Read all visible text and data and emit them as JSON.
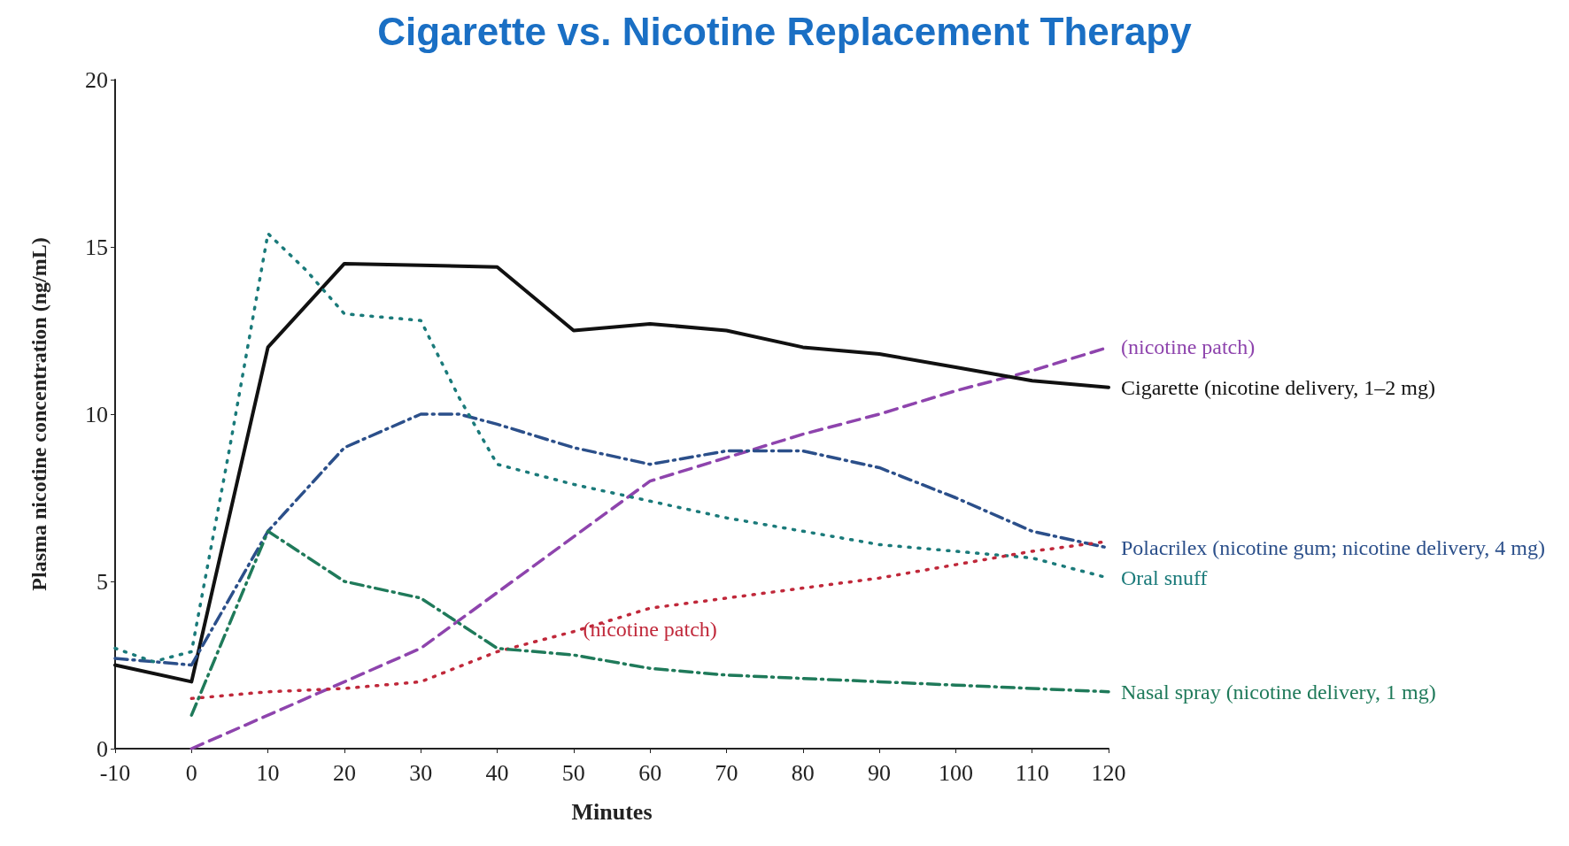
{
  "chart_data": {
    "type": "line",
    "title": "Cigarette vs. Nicotine Replacement Therapy",
    "xlabel": "Minutes",
    "ylabel": "Plasma nicotine concentration (ng/mL)",
    "xlim": [
      -10,
      120
    ],
    "xticks": [
      -10,
      0,
      10,
      20,
      30,
      40,
      50,
      60,
      70,
      80,
      90,
      100,
      110,
      120
    ],
    "ylim": [
      0,
      20
    ],
    "yticks": [
      0,
      5,
      10,
      15,
      20
    ],
    "grid": false,
    "legend": false,
    "marker": "none",
    "series": [
      {
        "name": "(nicotine patch)",
        "color": "#8e44ad",
        "line_style": "dashed",
        "x": [
          0,
          30,
          60,
          70,
          80,
          90,
          100,
          110,
          120
        ],
        "values": [
          0,
          3,
          8,
          8.7,
          9.4,
          10,
          10.7,
          11.3,
          12
        ]
      },
      {
        "name": "Cigarette (nicotine delivery, 1–2 mg)",
        "color": "#111111",
        "line_style": "solid",
        "x": [
          -10,
          0,
          10,
          20,
          30,
          40,
          50,
          60,
          70,
          80,
          90,
          100,
          110,
          120
        ],
        "values": [
          2.5,
          2,
          12,
          14.5,
          14.45,
          14.4,
          12.5,
          12.7,
          12.5,
          12,
          11.8,
          11.4,
          11,
          10.8
        ]
      },
      {
        "name": "Polacrilex (nicotine gum; nicotine delivery, 4 mg)",
        "color": "#2b4f8a",
        "line_style": "dashdot",
        "x": [
          -10,
          0,
          10,
          20,
          30,
          35,
          40,
          50,
          60,
          70,
          80,
          90,
          100,
          110,
          120
        ],
        "values": [
          2.7,
          2.5,
          6.5,
          9,
          10,
          10,
          9.7,
          9,
          8.5,
          8.9,
          8.9,
          8.4,
          7.5,
          6.5,
          6
        ]
      },
      {
        "name": "Oral snuff",
        "color": "#1a7a7a",
        "line_style": "dotted",
        "x": [
          -10,
          -5,
          0,
          5,
          10,
          15,
          20,
          30,
          35,
          40,
          50,
          60,
          70,
          80,
          90,
          100,
          110,
          120
        ],
        "values": [
          3,
          2.6,
          2.9,
          9,
          15.4,
          14.3,
          13,
          12.8,
          10.5,
          8.5,
          7.9,
          7.4,
          6.9,
          6.5,
          6.1,
          5.9,
          5.7,
          5.1
        ]
      },
      {
        "name": "(nicotine patch)",
        "color": "#c0283a",
        "line_style": "dotted",
        "x": [
          0,
          10,
          20,
          30,
          40,
          50,
          60,
          70,
          80,
          90,
          100,
          110,
          120
        ],
        "values": [
          1.5,
          1.7,
          1.8,
          2,
          2.9,
          3.5,
          4.2,
          4.5,
          4.8,
          5.1,
          5.5,
          5.9,
          6.2
        ]
      },
      {
        "name": "Nasal spray (nicotine delivery, 1 mg)",
        "color": "#1f7a5a",
        "line_style": "dashdot",
        "x": [
          0,
          10,
          20,
          30,
          40,
          50,
          60,
          70,
          80,
          90,
          100,
          110,
          120
        ],
        "values": [
          1,
          6.5,
          5,
          4.5,
          3,
          2.8,
          2.4,
          2.2,
          2.1,
          2,
          1.9,
          1.8,
          1.7
        ]
      }
    ]
  }
}
